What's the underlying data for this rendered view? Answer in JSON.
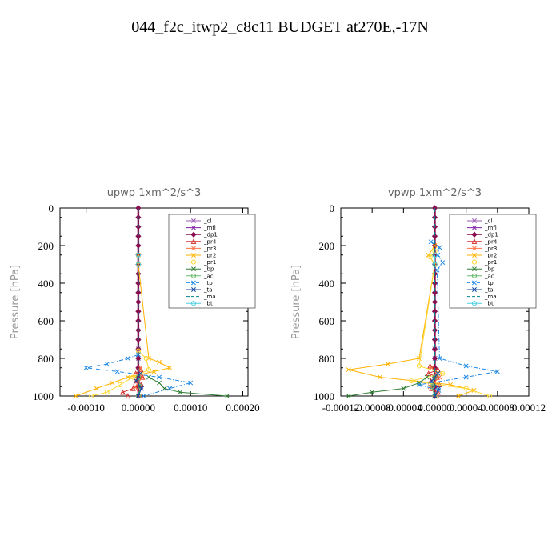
{
  "figure_title": "044_f2c_itwp2_c8c11  BUDGET at270E,-17N",
  "chart_data": [
    {
      "type": "line",
      "title": "upwp   1xm^2/s^3",
      "ylabel": "Pressure [hPa]",
      "xlabel": "",
      "xlim": [
        -0.00015,
        0.00021
      ],
      "ylim": [
        1000,
        0
      ],
      "xticks": [
        -0.0001,
        0.0,
        0.0001,
        0.0002
      ],
      "xtick_labels": [
        "-0.00010",
        "0.00000",
        "0.00010",
        "0.00020"
      ],
      "yticks": [
        0,
        200,
        400,
        600,
        800,
        1000
      ],
      "ytick_labels": [
        "0",
        "200",
        "400",
        "600",
        "800",
        "1000"
      ],
      "legend_placement": "top-right",
      "series": [
        {
          "name": "_cl",
          "color": "#9b59b6",
          "marker": "x",
          "y": [
            750,
            800,
            850,
            900,
            950,
            1000
          ],
          "x": [
            0,
            0,
            0,
            0,
            0,
            0
          ]
        },
        {
          "name": "_mfl",
          "color": "#7b1fa2",
          "marker": "x",
          "y": [
            900,
            950,
            1000
          ],
          "x": [
            0,
            5e-06,
            0
          ]
        },
        {
          "name": "_dp1",
          "color": "#880e4f",
          "marker": "diamond",
          "y": [
            0,
            50,
            100,
            150,
            200,
            250,
            300,
            350,
            400,
            450,
            500,
            550,
            600,
            650,
            700,
            750,
            800,
            850,
            900,
            950,
            1000
          ],
          "x": [
            0,
            0,
            0,
            0,
            0,
            0,
            0,
            0,
            0,
            0,
            0,
            0,
            0,
            0,
            0,
            0,
            0,
            0,
            0,
            0,
            0
          ]
        },
        {
          "name": "_pr4",
          "color": "#d32f2f",
          "marker": "triangle",
          "y": [
            860,
            880,
            900,
            920,
            940,
            960,
            980,
            1000
          ],
          "x": [
            5e-06,
            -5e-06,
            8e-06,
            -4e-06,
            6e-06,
            -1e-05,
            -3e-05,
            -2e-05
          ]
        },
        {
          "name": "_pr3",
          "color": "#ff7043",
          "marker": "x",
          "y": [
            850,
            900,
            950,
            1000
          ],
          "x": [
            4e-06,
            8e-06,
            -6e-06,
            3e-06
          ]
        },
        {
          "name": "_pr2",
          "color": "#ffb300",
          "marker": "x",
          "y": [
            250,
            300,
            800,
            820,
            850,
            870,
            900,
            930,
            960,
            1000
          ],
          "x": [
            0,
            0,
            2e-05,
            4e-05,
            6e-05,
            3e-05,
            -2e-05,
            -5e-05,
            -8e-05,
            -0.00012
          ]
        },
        {
          "name": "_pr1",
          "color": "#fdd835",
          "marker": "circle",
          "y": [
            760,
            800,
            860,
            900,
            940,
            980,
            1000
          ],
          "x": [
            0,
            1.5e-05,
            2e-05,
            -1e-05,
            -3.5e-05,
            -6e-05,
            -9e-05
          ]
        },
        {
          "name": "_bp",
          "color": "#2e7d32",
          "marker": "x",
          "y": [
            900,
            930,
            960,
            980,
            1000
          ],
          "x": [
            2e-05,
            4e-05,
            5e-05,
            8e-05,
            0.00017
          ]
        },
        {
          "name": "_ac",
          "color": "#66bb6a",
          "marker": "circle",
          "y": [
            900,
            950,
            1000
          ],
          "x": [
            0,
            4e-06,
            0
          ]
        },
        {
          "name": "_tp",
          "color": "#1e88e5",
          "marker": "x",
          "y": [
            780,
            800,
            830,
            850,
            870,
            900,
            930,
            960,
            1000
          ],
          "x": [
            0,
            -2e-05,
            -6e-05,
            -0.0001,
            -4e-05,
            4e-05,
            0.0001,
            6e-05,
            1e-05
          ]
        },
        {
          "name": "_ta",
          "color": "#0d47a1",
          "marker": "x",
          "y": [
            880,
            920,
            960,
            1000
          ],
          "x": [
            4e-06,
            -4e-06,
            6e-06,
            0
          ]
        },
        {
          "name": "_ma",
          "color": "#00838f",
          "marker": "none",
          "y": [
            0,
            250,
            500,
            750,
            1000
          ],
          "x": [
            0,
            0,
            0,
            0,
            0
          ]
        },
        {
          "name": "_bt",
          "color": "#4dd0e1",
          "marker": "circle",
          "y": [
            250,
            300
          ],
          "x": [
            0,
            0
          ]
        }
      ]
    },
    {
      "type": "line",
      "title": "vpwp   1xm^2/s^3",
      "ylabel": "Pressure [hPa]",
      "xlabel": "",
      "xlim": [
        -0.00012,
        0.00012
      ],
      "ylim": [
        1000,
        0
      ],
      "xticks": [
        -0.00012,
        -8e-05,
        -4e-05,
        0.0,
        4e-05,
        8e-05,
        0.00012
      ],
      "xtick_labels": [
        "-0.00012",
        "-0.00008",
        "-0.00004",
        "0.00000",
        "0.00004",
        "0.00008",
        "0.00012"
      ],
      "yticks": [
        0,
        200,
        400,
        600,
        800,
        1000
      ],
      "ytick_labels": [
        "0",
        "200",
        "400",
        "600",
        "800",
        "1000"
      ],
      "legend_placement": "top-right",
      "series": [
        {
          "name": "_cl",
          "color": "#9b59b6",
          "marker": "x",
          "y": [
            750,
            800,
            850,
            900,
            950,
            1000
          ],
          "x": [
            0,
            0,
            0,
            0,
            0,
            0
          ]
        },
        {
          "name": "_mfl",
          "color": "#7b1fa2",
          "marker": "x",
          "y": [
            900,
            950,
            1000
          ],
          "x": [
            0,
            -4e-06,
            0
          ]
        },
        {
          "name": "_dp1",
          "color": "#880e4f",
          "marker": "diamond",
          "y": [
            0,
            50,
            100,
            150,
            200,
            250,
            300,
            350,
            400,
            450,
            500,
            550,
            600,
            650,
            700,
            750,
            800,
            850,
            900,
            950,
            1000
          ],
          "x": [
            0,
            0,
            0,
            0,
            0,
            0,
            0,
            0,
            0,
            0,
            0,
            0,
            0,
            0,
            0,
            0,
            0,
            0,
            0,
            0,
            0
          ]
        },
        {
          "name": "_pr4",
          "color": "#d32f2f",
          "marker": "triangle",
          "y": [
            840,
            860,
            880,
            900,
            920,
            940,
            960,
            980,
            1000
          ],
          "x": [
            -6e-06,
            4e-06,
            -8e-06,
            3e-06,
            -5e-06,
            6e-06,
            -4e-06,
            4e-06,
            0
          ]
        },
        {
          "name": "_pr3",
          "color": "#ff7043",
          "marker": "x",
          "y": [
            850,
            900,
            950,
            1000
          ],
          "x": [
            -4e-06,
            6e-06,
            -6e-06,
            3e-06
          ]
        },
        {
          "name": "_pr2",
          "color": "#ffb300",
          "marker": "x",
          "y": [
            200,
            250,
            300,
            800,
            830,
            860,
            900,
            940,
            970,
            1000
          ],
          "x": [
            0,
            -8e-06,
            0,
            -2e-05,
            -6e-05,
            -0.00011,
            -7e-05,
            2e-05,
            5e-05,
            3e-05
          ]
        },
        {
          "name": "_pr1",
          "color": "#fdd835",
          "marker": "circle",
          "y": [
            230,
            260,
            300,
            840,
            880,
            920,
            960,
            1000
          ],
          "x": [
            0,
            -6e-06,
            0,
            -2e-05,
            1e-05,
            -3e-05,
            4e-05,
            7e-05
          ]
        },
        {
          "name": "_bp",
          "color": "#2e7d32",
          "marker": "x",
          "y": [
            900,
            930,
            960,
            980,
            1000
          ],
          "x": [
            -1e-05,
            -2e-05,
            -4e-05,
            -8e-05,
            -0.00011
          ]
        },
        {
          "name": "_ac",
          "color": "#66bb6a",
          "marker": "circle",
          "y": [
            900,
            950,
            1000
          ],
          "x": [
            0,
            -4e-06,
            0
          ]
        },
        {
          "name": "_tp",
          "color": "#1e88e5",
          "marker": "x",
          "y": [
            180,
            210,
            250,
            290,
            330,
            800,
            840,
            870,
            900,
            940,
            970,
            1000
          ],
          "x": [
            -5e-06,
            6e-06,
            4e-06,
            1e-05,
            3e-06,
            6e-06,
            4e-05,
            8e-05,
            4e-05,
            -2e-05,
            5e-06,
            0
          ]
        },
        {
          "name": "_ta",
          "color": "#0d47a1",
          "marker": "x",
          "y": [
            880,
            920,
            960,
            1000
          ],
          "x": [
            4e-06,
            -4e-06,
            5e-06,
            0
          ]
        },
        {
          "name": "_ma",
          "color": "#00838f",
          "marker": "none",
          "y": [
            0,
            250,
            500,
            750,
            1000
          ],
          "x": [
            0,
            0,
            0,
            0,
            0
          ]
        },
        {
          "name": "_bt",
          "color": "#4dd0e1",
          "marker": "circle",
          "y": [
            250,
            300
          ],
          "x": [
            0,
            0
          ]
        }
      ]
    }
  ]
}
